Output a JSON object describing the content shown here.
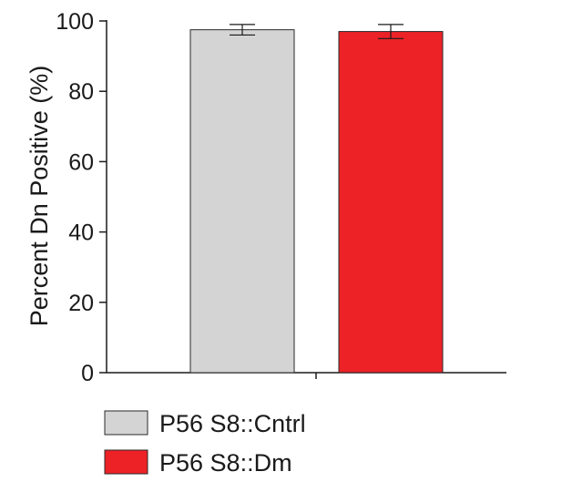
{
  "chart_data": {
    "type": "bar",
    "title": "",
    "xlabel": "",
    "ylabel": "Percent Dn Positive (%)",
    "ylim": [
      0,
      100
    ],
    "yticks": [
      0,
      20,
      40,
      60,
      80,
      100
    ],
    "grid": false,
    "legend_position": "bottom-left",
    "series": [
      {
        "name": "P56 S8::Cntrl",
        "value": 97.5,
        "error": 1.5,
        "color": "#d4d4d4"
      },
      {
        "name": "P56 S8::Dm",
        "value": 97.0,
        "error": 2.0,
        "color": "#ec2227"
      }
    ]
  }
}
